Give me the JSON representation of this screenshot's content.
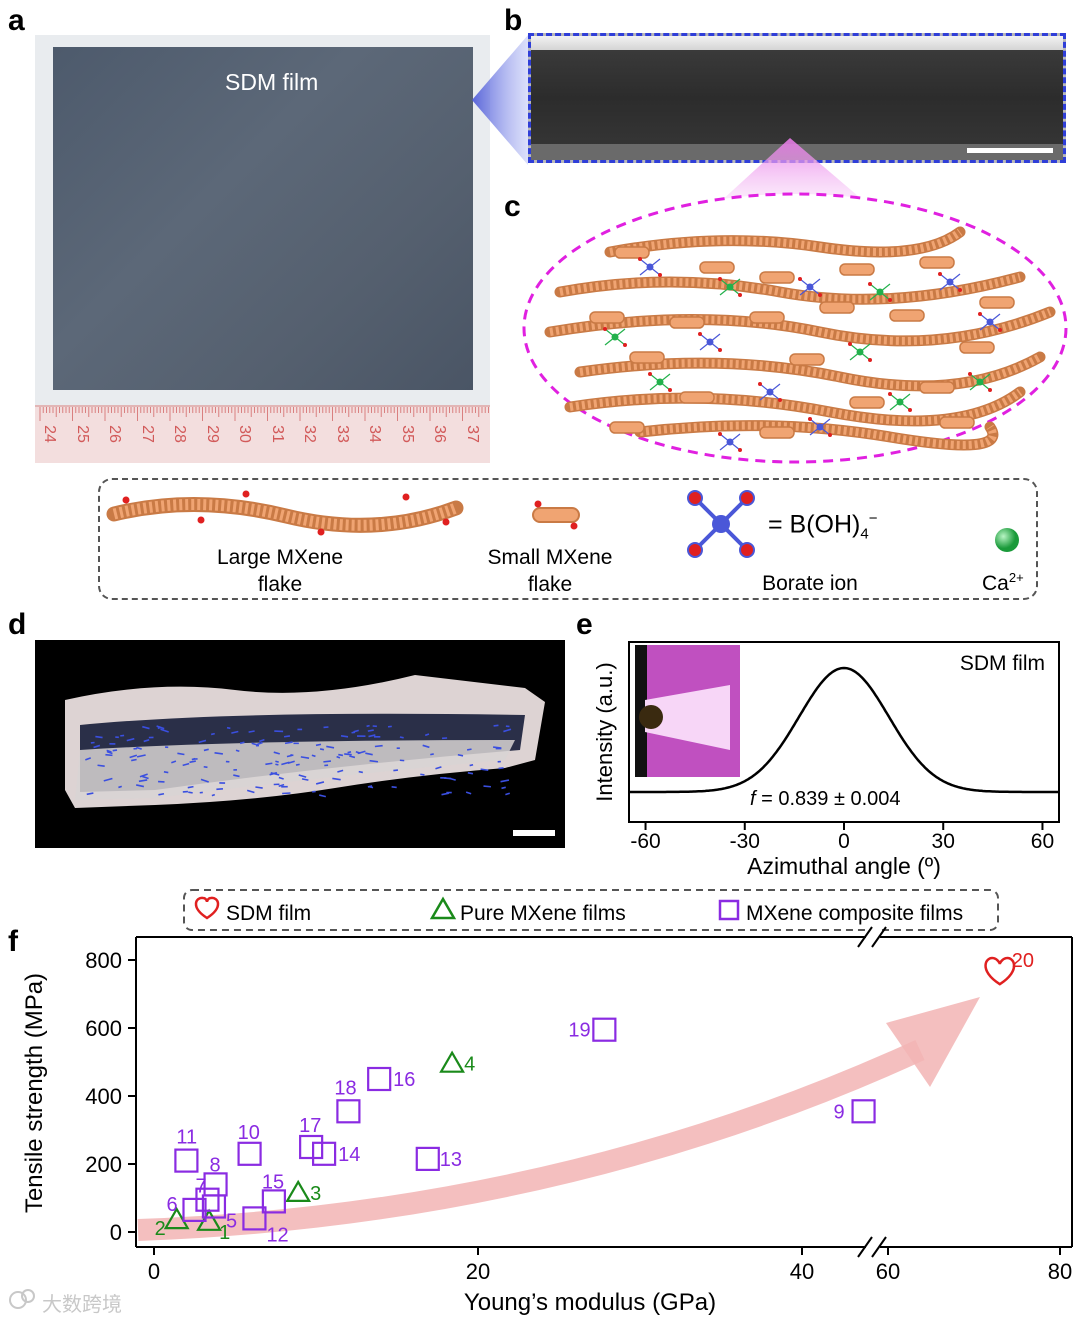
{
  "panels": {
    "a": "a",
    "b": "b",
    "c": "c",
    "d": "d",
    "e": "e",
    "f": "f"
  },
  "photo_a": {
    "film_label": "SDM film",
    "ruler_numbers": [
      "24",
      "25",
      "26",
      "27",
      "28",
      "29",
      "30",
      "31",
      "32",
      "33",
      "34",
      "35",
      "36",
      "37"
    ]
  },
  "legend_c": {
    "large_line1": "Large MXene",
    "large_line2": "flake",
    "small_line1": "Small MXene",
    "small_line2": "flake",
    "borate_eq": "= B(OH)",
    "borate_sub": "4",
    "borate_sup": "−",
    "borate_label": "Borate ion",
    "ca_label": "Ca",
    "ca_sup": "2+"
  },
  "colors": {
    "mxene": "#f0a472",
    "oh": "#e02020",
    "borate": "#4a57d8",
    "ca": "#22b14c",
    "magenta": "#e020e0",
    "blue_dash": "#2f3ed8",
    "arrow": "#f2b4b4",
    "heart": "#e02020",
    "pure": "#1a8a1a",
    "composite": "#8a2be2"
  },
  "chart_e": {
    "type": "line",
    "title": "SDM film",
    "xlabel": "Azimuthal angle (º)",
    "ylabel": "Intensity (a.u.)",
    "xlim": [
      -65,
      65
    ],
    "xticks": [
      -60,
      -30,
      0,
      30,
      60
    ],
    "xtick_labels": [
      "-60",
      "-30",
      "0",
      "30",
      "60"
    ],
    "series": [
      {
        "name": "SDM film",
        "peak_center": 0,
        "fwhm": 32
      }
    ],
    "annotation_f": "f",
    "annotation_rest": " = 0.839 ± 0.004"
  },
  "chart_data": {
    "type": "scatter",
    "xlabel": "Young’s modulus (GPa)",
    "ylabel": "Tensile strength (MPa)",
    "ylim": [
      0,
      800
    ],
    "yticks": [
      0,
      200,
      400,
      600,
      800
    ],
    "ytick_labels": [
      "0",
      "200",
      "400",
      "600",
      "800"
    ],
    "xaxis_segments": [
      {
        "range": [
          0,
          45
        ],
        "ticks": [
          0,
          20,
          40
        ],
        "tick_labels": [
          "0",
          "20",
          "40"
        ]
      },
      {
        "range": [
          55,
          80
        ],
        "ticks": [
          60,
          80
        ],
        "tick_labels": [
          "60",
          "80"
        ]
      }
    ],
    "legend": [
      "SDM film",
      "Pure MXene films",
      "MXene composite films"
    ],
    "series": [
      {
        "name": "SDM film",
        "marker": "heart",
        "points": [
          {
            "x": 73,
            "y": 770,
            "label": "20"
          }
        ]
      },
      {
        "name": "Pure MXene films",
        "marker": "triangle",
        "points": [
          {
            "x": 3.4,
            "y": 30,
            "label": "1"
          },
          {
            "x": 1.4,
            "y": 35,
            "label": "2"
          },
          {
            "x": 8.9,
            "y": 115,
            "label": "3"
          },
          {
            "x": 18.4,
            "y": 495,
            "label": "4"
          }
        ]
      },
      {
        "name": "MXene composite films",
        "marker": "square",
        "points": [
          {
            "x": 3.7,
            "y": 75,
            "label": "5"
          },
          {
            "x": 2.5,
            "y": 65,
            "label": "6"
          },
          {
            "x": 3.3,
            "y": 95,
            "label": "7"
          },
          {
            "x": 3.8,
            "y": 140,
            "label": "8"
          },
          {
            "x": 43.8,
            "y": 355,
            "label": "9"
          },
          {
            "x": 5.9,
            "y": 230,
            "label": "10"
          },
          {
            "x": 2.0,
            "y": 210,
            "label": "11"
          },
          {
            "x": 6.2,
            "y": 40,
            "label": "12"
          },
          {
            "x": 16.9,
            "y": 215,
            "label": "13"
          },
          {
            "x": 10.5,
            "y": 230,
            "label": "14"
          },
          {
            "x": 7.4,
            "y": 90,
            "label": "15"
          },
          {
            "x": 13.9,
            "y": 450,
            "label": "16"
          },
          {
            "x": 9.7,
            "y": 250,
            "label": "17"
          },
          {
            "x": 12.0,
            "y": 355,
            "label": "18"
          },
          {
            "x": 27.8,
            "y": 595,
            "label": "19"
          }
        ]
      }
    ]
  },
  "watermark": "大数跨境"
}
